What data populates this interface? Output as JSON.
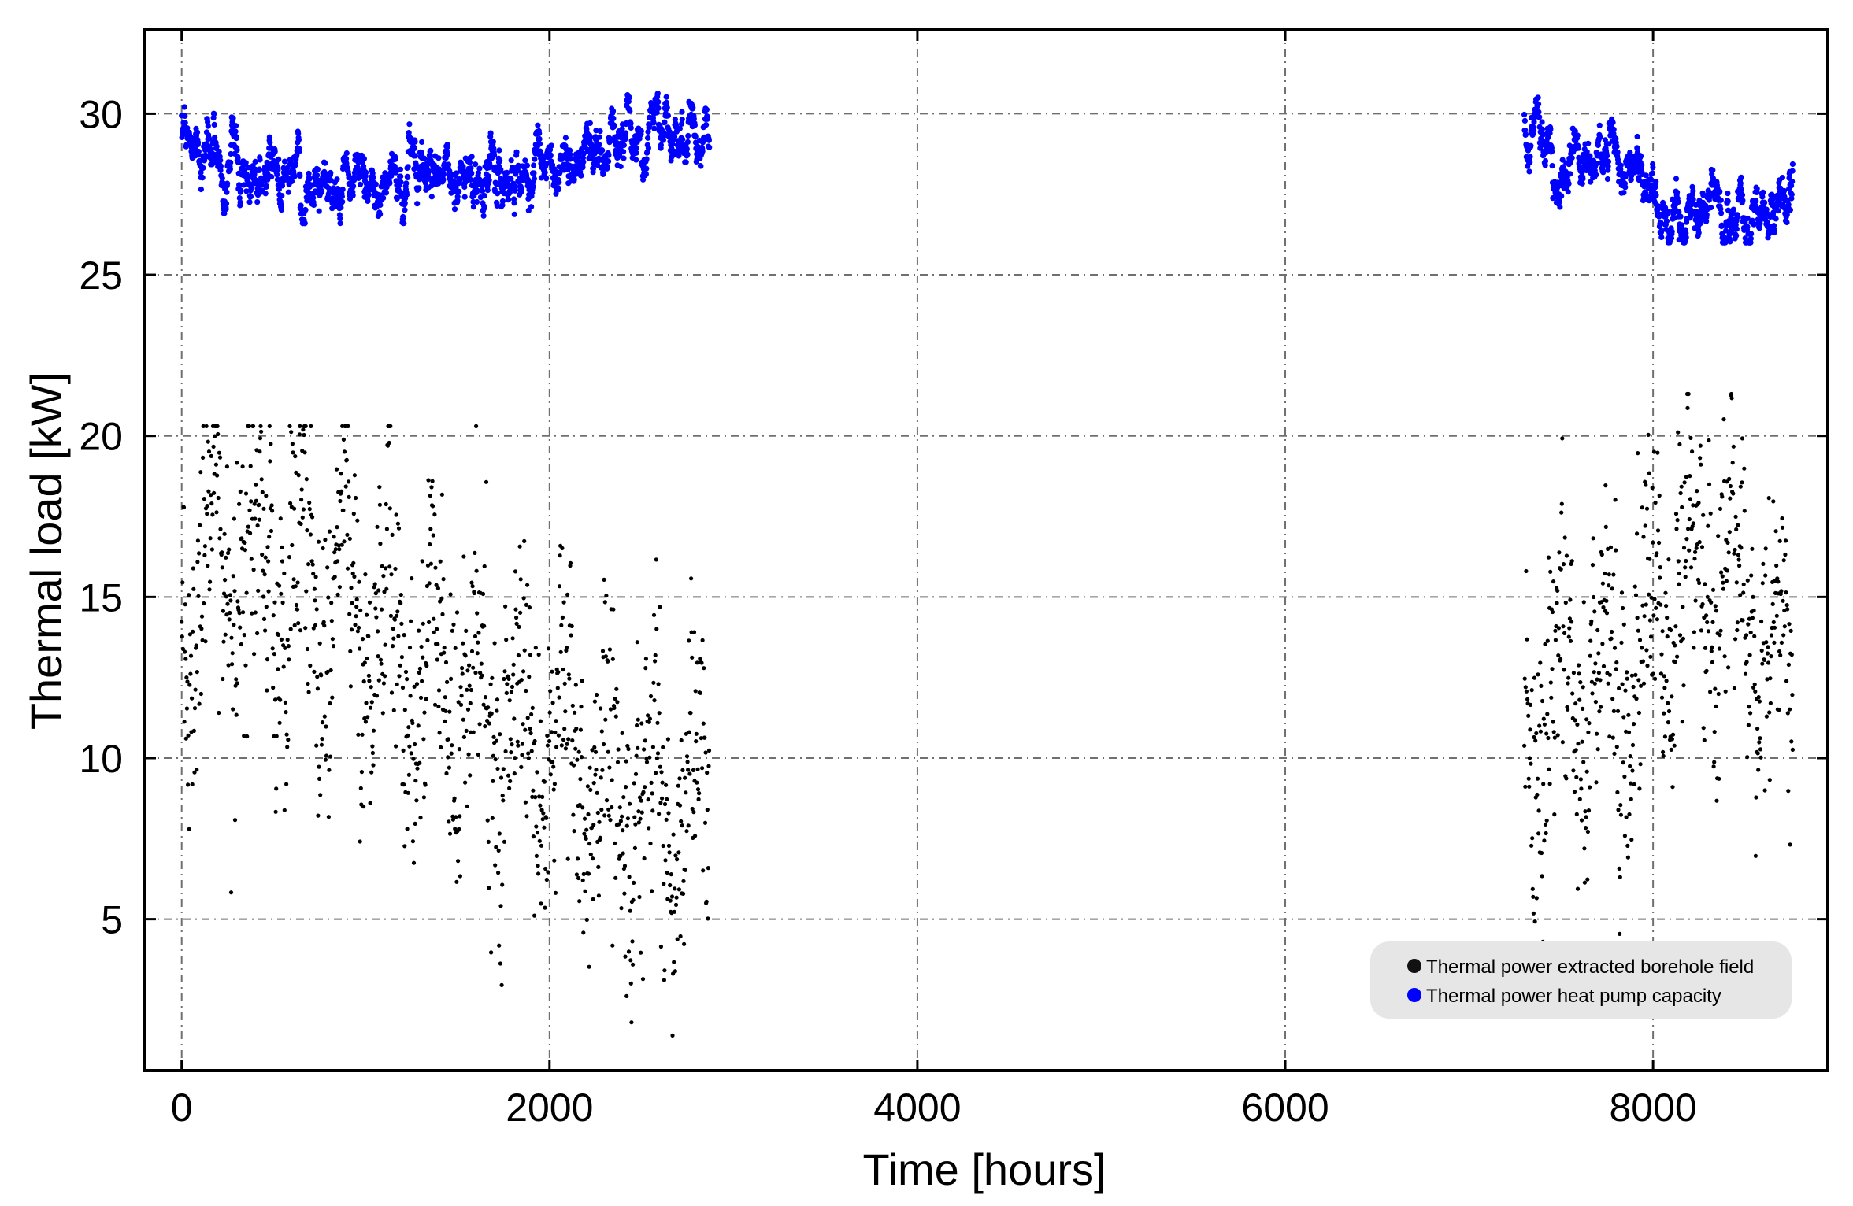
{
  "chart_data": {
    "type": "scatter",
    "title": "",
    "xlabel": "Time [hours]",
    "ylabel": "Thermal load [kW]",
    "xlim": [
      -200,
      8950
    ],
    "ylim": [
      0.3,
      32.6
    ],
    "xticks": [
      0,
      2000,
      4000,
      6000,
      8000
    ],
    "yticks": [
      5,
      10,
      15,
      20,
      25,
      30
    ],
    "xtick_labels": [
      "0",
      "2000",
      "4000",
      "6000",
      "8000"
    ],
    "ytick_labels": [
      "5",
      "10",
      "15",
      "20",
      "25",
      "30"
    ],
    "grid": "on (dash-dot, gray)",
    "legend_position": "bottom-right",
    "series": [
      {
        "name": "Thermal power extracted borehole field",
        "color": "#000000",
        "segments": [
          {
            "x_range": [
              0,
              2870
            ],
            "mean_profile": [
              [
                0,
                15.5
              ],
              [
                300,
                16.2
              ],
              [
                600,
                15.0
              ],
              [
                900,
                15.5
              ],
              [
                1000,
                14.2
              ],
              [
                1300,
                12.8
              ],
              [
                1600,
                11.8
              ],
              [
                1900,
                10.5
              ],
              [
                2200,
                9.6
              ],
              [
                2500,
                8.8
              ],
              [
                2870,
                8.2
              ]
            ],
            "y_min": 0.5,
            "y_max": 20.3
          },
          {
            "x_range": [
              7300,
              8760
            ],
            "mean_profile": [
              [
                7300,
                11.0
              ],
              [
                7600,
                12.2
              ],
              [
                7900,
                12.8
              ],
              [
                8100,
                15.5
              ],
              [
                8400,
                15.8
              ],
              [
                8600,
                13.5
              ],
              [
                8760,
                12.0
              ]
            ],
            "y_min": 4.3,
            "y_max": 21.3
          }
        ]
      },
      {
        "name": "Thermal power heat pump capacity",
        "color": "#0000ff",
        "segments": [
          {
            "x_range": [
              0,
              2870
            ],
            "mean_profile": [
              [
                0,
                29.5
              ],
              [
                150,
                28.2
              ],
              [
                400,
                28.2
              ],
              [
                600,
                28.3
              ],
              [
                900,
                27.5
              ],
              [
                1100,
                28.0
              ],
              [
                1500,
                28.5
              ],
              [
                1800,
                28.0
              ],
              [
                2100,
                28.6
              ],
              [
                2400,
                28.8
              ],
              [
                2600,
                29.5
              ],
              [
                2870,
                29.0
              ]
            ],
            "y_min": 26.6,
            "y_max": 30.7
          },
          {
            "x_range": [
              7300,
              8760
            ],
            "mean_profile": [
              [
                7300,
                29.8
              ],
              [
                7500,
                28.5
              ],
              [
                7700,
                28.6
              ],
              [
                7900,
                28.2
              ],
              [
                8100,
                27.0
              ],
              [
                8400,
                26.8
              ],
              [
                8600,
                27.0
              ],
              [
                8760,
                28.2
              ]
            ],
            "y_min": 26.0,
            "y_max": 30.5
          }
        ]
      }
    ]
  }
}
